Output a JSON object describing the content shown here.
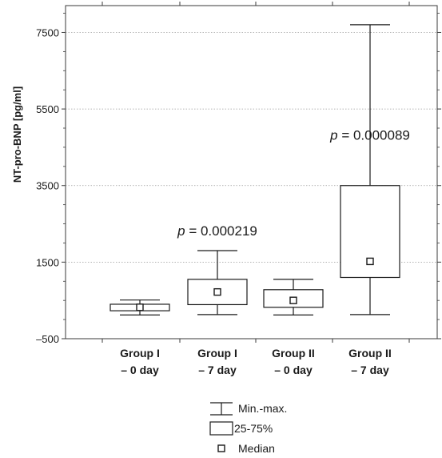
{
  "chart_data": {
    "type": "box",
    "ylabel": "NT-pro-BNP [pg/ml]",
    "ylim": [
      -500,
      8200
    ],
    "yticks": [
      -500,
      1500,
      3500,
      5500,
      7500
    ],
    "ytick_labels": [
      "–500",
      "1500",
      "3500",
      "5500",
      "7500"
    ],
    "grid": true,
    "categories": [
      {
        "line1": "Group I",
        "line2": "– 0 day"
      },
      {
        "line1": "Group I",
        "line2": "– 7 day"
      },
      {
        "line1": "Group II",
        "line2": "– 0 day"
      },
      {
        "line1": "Group II",
        "line2": "– 7 day"
      }
    ],
    "boxes": [
      {
        "min": 120,
        "q1": 230,
        "median": 320,
        "q3": 400,
        "max": 510
      },
      {
        "min": 130,
        "q1": 390,
        "median": 720,
        "q3": 1050,
        "max": 1800
      },
      {
        "min": 120,
        "q1": 320,
        "median": 500,
        "q3": 780,
        "max": 1050
      },
      {
        "min": 130,
        "q1": 1100,
        "median": 1520,
        "q3": 3500,
        "max": 7700
      }
    ],
    "annotations": [
      {
        "p_symbol": "p",
        "rest": " = 0.000219",
        "group": 1,
        "y": 2200
      },
      {
        "p_symbol": "p",
        "rest": " = 0.000089",
        "group": 3,
        "y": 4700
      }
    ],
    "legend": {
      "placement": "bottom",
      "items": [
        {
          "symbol": "whisker",
          "label": "Min.-max."
        },
        {
          "symbol": "box",
          "label": "25-75%"
        },
        {
          "symbol": "median",
          "label": "Median"
        }
      ]
    }
  }
}
